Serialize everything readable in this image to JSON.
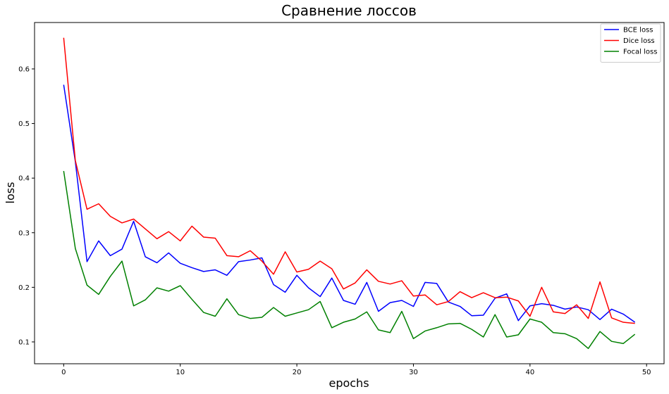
{
  "chart_data": {
    "type": "line",
    "title": "Сравнение лоссов",
    "xlabel": "epochs",
    "ylabel": "loss",
    "xlim": [
      -2.5,
      51.5
    ],
    "ylim": [
      0.06,
      0.685
    ],
    "xticks": [
      0,
      10,
      20,
      30,
      40,
      50
    ],
    "yticks": [
      0.1,
      0.2,
      0.3,
      0.4,
      0.5,
      0.6
    ],
    "legend_position": "top-right",
    "grid": false,
    "x": [
      0,
      1,
      2,
      3,
      4,
      5,
      6,
      7,
      8,
      9,
      10,
      11,
      12,
      13,
      14,
      15,
      16,
      17,
      18,
      19,
      20,
      21,
      22,
      23,
      24,
      25,
      26,
      27,
      28,
      29,
      30,
      31,
      32,
      33,
      34,
      35,
      36,
      37,
      38,
      39,
      40,
      41,
      42,
      43,
      44,
      45,
      46,
      47,
      48,
      49
    ],
    "series": [
      {
        "name": "BCE loss",
        "color": "#0000ff",
        "values": [
          0.571,
          0.43,
          0.247,
          0.285,
          0.258,
          0.27,
          0.321,
          0.256,
          0.245,
          0.263,
          0.244,
          0.236,
          0.229,
          0.232,
          0.222,
          0.247,
          0.25,
          0.254,
          0.205,
          0.191,
          0.222,
          0.199,
          0.183,
          0.217,
          0.176,
          0.169,
          0.209,
          0.156,
          0.172,
          0.176,
          0.165,
          0.209,
          0.207,
          0.173,
          0.165,
          0.148,
          0.149,
          0.18,
          0.188,
          0.139,
          0.166,
          0.17,
          0.167,
          0.16,
          0.164,
          0.159,
          0.141,
          0.16,
          0.151,
          0.136
        ]
      },
      {
        "name": "Dice loss",
        "color": "#ff0000",
        "values": [
          0.657,
          0.432,
          0.343,
          0.353,
          0.33,
          0.318,
          0.325,
          0.307,
          0.289,
          0.302,
          0.285,
          0.312,
          0.292,
          0.29,
          0.258,
          0.256,
          0.267,
          0.248,
          0.224,
          0.265,
          0.228,
          0.233,
          0.248,
          0.234,
          0.197,
          0.208,
          0.232,
          0.211,
          0.206,
          0.212,
          0.184,
          0.186,
          0.168,
          0.174,
          0.192,
          0.181,
          0.19,
          0.181,
          0.182,
          0.175,
          0.147,
          0.2,
          0.155,
          0.152,
          0.168,
          0.143,
          0.21,
          0.144,
          0.136,
          0.134
        ]
      },
      {
        "name": "Focal loss",
        "color": "#008000",
        "values": [
          0.413,
          0.271,
          0.204,
          0.187,
          0.22,
          0.248,
          0.166,
          0.177,
          0.199,
          0.193,
          0.203,
          0.178,
          0.154,
          0.147,
          0.179,
          0.15,
          0.143,
          0.145,
          0.163,
          0.147,
          0.153,
          0.159,
          0.174,
          0.126,
          0.136,
          0.142,
          0.155,
          0.122,
          0.117,
          0.156,
          0.106,
          0.12,
          0.126,
          0.133,
          0.134,
          0.123,
          0.109,
          0.15,
          0.109,
          0.113,
          0.142,
          0.136,
          0.117,
          0.115,
          0.106,
          0.088,
          0.119,
          0.101,
          0.097,
          0.114
        ]
      }
    ]
  }
}
